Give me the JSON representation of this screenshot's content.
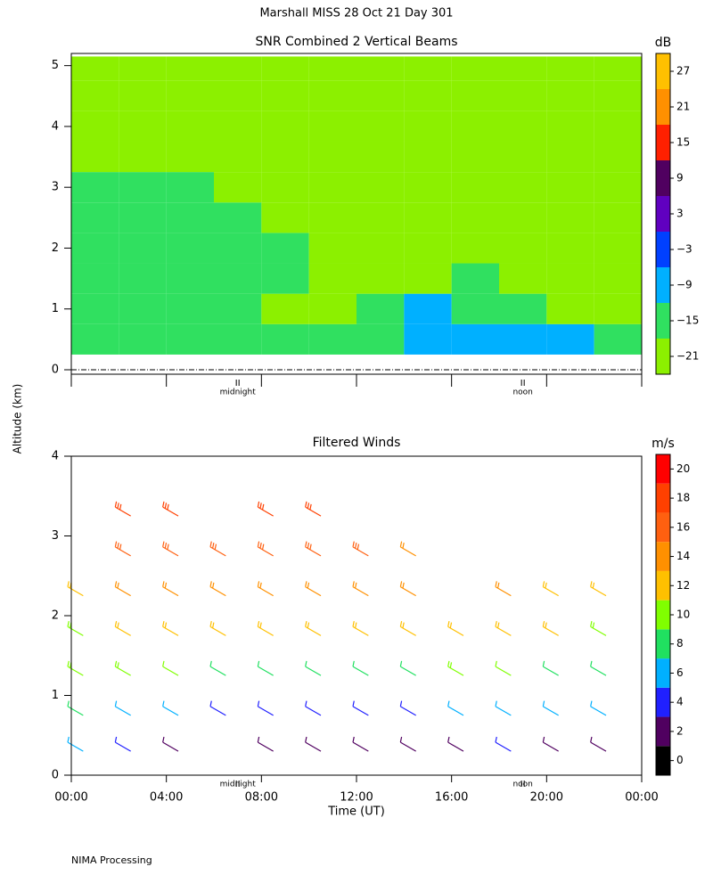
{
  "title": "Marshall MISS   28 Oct 21 Day 301",
  "y_label": "Altitude (km)",
  "footer": "NIMA Processing",
  "chart_data": [
    {
      "type": "heatmap",
      "title": "SNR Combined 2 Vertical Beams",
      "xlim": [
        0,
        24
      ],
      "ylim": [
        0,
        5.2
      ],
      "xticks": [
        0,
        4,
        8,
        12,
        16,
        20,
        24
      ],
      "yticks": [
        0,
        1,
        2,
        3,
        4,
        5
      ],
      "local_markers": [
        {
          "value": 7,
          "label": "midnight"
        },
        {
          "value": 19,
          "label": "noon"
        }
      ],
      "time_edges": [
        0,
        2,
        4,
        6,
        8,
        10,
        12,
        14,
        16,
        18,
        20,
        22,
        24
      ],
      "altitude_edges": [
        0.25,
        0.75,
        1.25,
        1.75,
        2.25,
        2.75,
        3.25,
        3.75,
        4.25,
        4.75,
        5.15
      ],
      "values": [
        [
          -15,
          -15,
          -15,
          -15,
          -15,
          -15,
          -15,
          -10,
          -10,
          -10,
          -10,
          -15
        ],
        [
          -15,
          -15,
          -15,
          -15,
          -20,
          -20,
          -15,
          -10,
          -15,
          -15,
          -20,
          -20
        ],
        [
          -15,
          -15,
          -15,
          -15,
          -15,
          -20,
          -20,
          -20,
          -15,
          -20,
          -20,
          -20
        ],
        [
          -15,
          -15,
          -15,
          -15,
          -15,
          -20,
          -20,
          -20,
          -20,
          -20,
          -20,
          -20
        ],
        [
          -15,
          -15,
          -15,
          -15,
          -20,
          -20,
          -20,
          -20,
          -20,
          -20,
          -20,
          -20
        ],
        [
          -15,
          -15,
          -15,
          -20,
          -20,
          -20,
          -20,
          -20,
          -20,
          -20,
          -20,
          -20
        ],
        [
          -20,
          -20,
          -20,
          -20,
          -20,
          -20,
          -20,
          -20,
          -20,
          -20,
          -20,
          -20
        ],
        [
          -20,
          -20,
          -20,
          -20,
          -20,
          -20,
          -20,
          -20,
          -20,
          -20,
          -20,
          -20
        ],
        [
          -20,
          -20,
          -20,
          -20,
          -20,
          -20,
          -20,
          -20,
          -20,
          -20,
          -20,
          -20
        ],
        [
          -20,
          -20,
          -20,
          -20,
          -20,
          -20,
          -20,
          -20,
          -20,
          -20,
          -20,
          -20
        ]
      ],
      "colorbar": {
        "label": "dB",
        "clim": [
          -24,
          30
        ],
        "ticks": [
          {
            "value": -21,
            "label": "−21"
          },
          {
            "value": -15,
            "label": "−15"
          },
          {
            "value": -9,
            "label": "−9"
          },
          {
            "value": -3,
            "label": "−3"
          },
          3,
          9,
          15,
          21,
          27
        ],
        "colors": [
          "#8cf000",
          "#30e060",
          "#00b0ff",
          "#0040ff",
          "#6000c0",
          "#500060",
          "#ff2000",
          "#ff9000",
          "#ffc000"
        ]
      }
    },
    {
      "type": "barbs",
      "title": "Filtered Winds",
      "x_label": "Time (UT)",
      "xlim": [
        0,
        24
      ],
      "ylim": [
        0,
        4
      ],
      "xticks": [
        {
          "value": 0,
          "label": "00:00"
        },
        {
          "value": 4,
          "label": "04:00"
        },
        {
          "value": 8,
          "label": "08:00"
        },
        {
          "value": 12,
          "label": "12:00"
        },
        {
          "value": 16,
          "label": "16:00"
        },
        {
          "value": 20,
          "label": "20:00"
        },
        {
          "value": 24,
          "label": "00:00"
        }
      ],
      "yticks": [
        0,
        1,
        2,
        3,
        4
      ],
      "local_markers": [
        {
          "value": 7,
          "label": "midnight"
        },
        {
          "value": 19,
          "label": "noon"
        }
      ],
      "direction_deg": 300,
      "times": [
        0.5,
        2.5,
        4.5,
        6.5,
        8.5,
        10.5,
        12.5,
        14.5,
        16.5,
        18.5,
        20.5,
        22.5
      ],
      "altitudes": [
        0.3,
        0.75,
        1.25,
        1.75,
        2.25,
        2.75,
        3.25
      ],
      "speeds": [
        [
          6,
          3,
          2,
          null,
          2,
          2,
          2,
          2,
          2,
          3,
          2,
          2
        ],
        [
          8,
          6,
          6,
          4,
          3,
          4,
          4,
          4,
          6,
          5,
          5,
          6
        ],
        [
          10,
          10,
          9,
          8,
          8,
          8,
          8,
          7,
          10,
          9,
          8,
          8
        ],
        [
          10,
          12,
          12,
          12,
          12,
          12,
          12,
          12,
          12,
          12,
          11,
          10
        ],
        [
          11,
          14,
          14,
          14,
          14,
          14,
          14,
          13,
          null,
          14,
          12,
          12
        ],
        [
          null,
          16,
          16,
          16,
          15,
          15,
          15,
          14,
          null,
          null,
          null,
          null
        ],
        [
          null,
          18,
          18,
          null,
          18,
          17,
          null,
          null,
          null,
          null,
          null,
          null
        ]
      ],
      "colorbar": {
        "label": "m/s",
        "clim": [
          -1,
          21
        ],
        "ticks": [
          0,
          2,
          4,
          6,
          8,
          10,
          12,
          14,
          16,
          18,
          20
        ],
        "colors": [
          "#000000",
          "#500060",
          "#2020ff",
          "#00b0ff",
          "#20e060",
          "#80ff00",
          "#ffc000",
          "#ff9000",
          "#ff6010",
          "#ff4000",
          "#ff0000"
        ]
      }
    }
  ]
}
